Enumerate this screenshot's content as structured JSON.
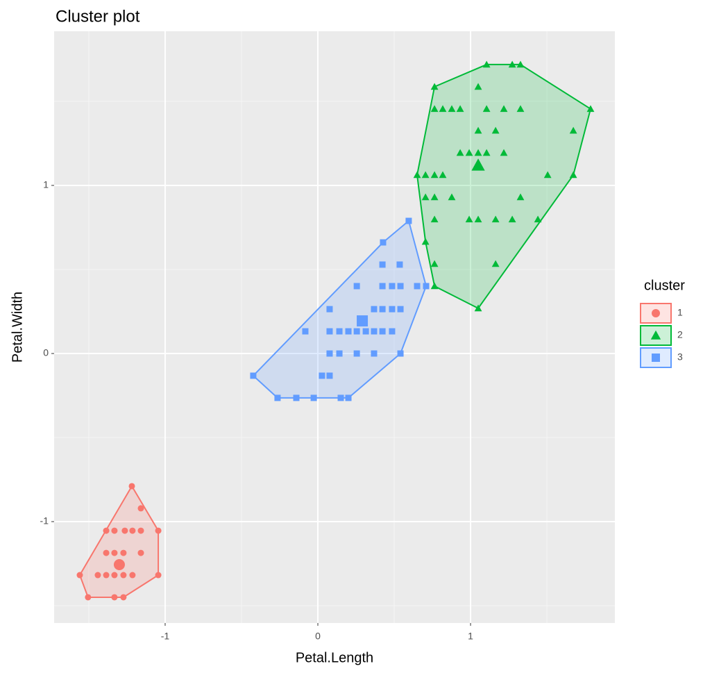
{
  "chart_data": {
    "type": "scatter",
    "title": "Cluster plot",
    "x_label": "Petal.Length",
    "y_label": "Petal.Width",
    "legend_title": "cluster",
    "legend_position": "right",
    "grid": true,
    "hull": true,
    "xlim": [
      -1.727,
      1.945
    ],
    "ylim": [
      -1.603,
      1.917
    ],
    "xticks": [
      -1,
      0,
      1
    ],
    "yticks": [
      -1,
      0,
      1
    ],
    "series": [
      {
        "name": "1",
        "color": "#F8766D",
        "marker": "circle",
        "x": [
          -1.218,
          -1.159,
          -1.264,
          -1.386,
          -1.332,
          -1.214,
          -1.159,
          -1.045,
          -1.386,
          -1.332,
          -1.273,
          -1.159,
          -1.441,
          -1.386,
          -1.332,
          -1.273,
          -1.214,
          -1.045,
          -1.559,
          -1.505,
          -1.332,
          -1.273
        ],
        "y": [
          -0.789,
          -0.921,
          -1.054,
          -1.054,
          -1.054,
          -1.054,
          -1.054,
          -1.054,
          -1.186,
          -1.186,
          -1.186,
          -1.186,
          -1.318,
          -1.318,
          -1.318,
          -1.318,
          -1.318,
          -1.318,
          -1.318,
          -1.45,
          -1.45,
          -1.45
        ],
        "center": [
          -1.3,
          -1.256
        ]
      },
      {
        "name": "2",
        "color": "#00BA38",
        "marker": "triangle",
        "x": [
          0.764,
          1.105,
          1.273,
          1.327,
          1.786,
          1.673,
          1.05,
          0.764,
          0.705,
          0.65,
          1.05,
          0.764,
          0.818,
          0.877,
          0.932,
          1.105,
          1.218,
          1.327,
          1.05,
          1.164,
          1.673,
          0.932,
          0.991,
          1.05,
          1.105,
          1.218,
          0.705,
          0.764,
          0.818,
          1.505,
          0.705,
          0.764,
          0.877,
          1.327,
          0.764,
          0.991,
          1.05,
          1.164,
          1.273,
          1.441,
          0.764,
          1.164
        ],
        "y": [
          1.587,
          1.719,
          1.719,
          1.719,
          1.455,
          1.062,
          0.269,
          0.401,
          0.665,
          1.062,
          1.587,
          1.455,
          1.455,
          1.455,
          1.455,
          1.455,
          1.455,
          1.455,
          1.326,
          1.326,
          1.326,
          1.194,
          1.194,
          1.194,
          1.194,
          1.194,
          1.062,
          1.062,
          1.062,
          1.062,
          0.93,
          0.93,
          0.93,
          0.93,
          0.798,
          0.798,
          0.798,
          0.798,
          0.798,
          0.798,
          0.533,
          0.533
        ],
        "center": [
          1.05,
          1.12
        ]
      },
      {
        "name": "3",
        "color": "#619CFF",
        "marker": "square",
        "x": [
          -0.423,
          -0.264,
          -0.141,
          -0.027,
          0.15,
          0.2,
          0.541,
          0.709,
          0.595,
          0.427,
          -0.082,
          0.077,
          0.255,
          0.423,
          0.536,
          0.423,
          0.486,
          0.541,
          0.65,
          0.368,
          0.423,
          0.486,
          0.541,
          0.077,
          0.141,
          0.2,
          0.255,
          0.314,
          0.368,
          0.423,
          0.486,
          0.141,
          0.077,
          0.255,
          0.368,
          0.027,
          0.077
        ],
        "y": [
          -0.132,
          -0.264,
          -0.264,
          -0.264,
          -0.264,
          -0.264,
          0,
          0.401,
          0.789,
          0.661,
          0.132,
          0.264,
          0.401,
          0.529,
          0.529,
          0.401,
          0.401,
          0.401,
          0.401,
          0.264,
          0.264,
          0.264,
          0.264,
          0.132,
          0.132,
          0.132,
          0.132,
          0.132,
          0.132,
          0.132,
          0.132,
          0,
          0,
          0,
          0,
          -0.132,
          -0.132
        ],
        "center": [
          0.291,
          0.194
        ]
      }
    ]
  }
}
